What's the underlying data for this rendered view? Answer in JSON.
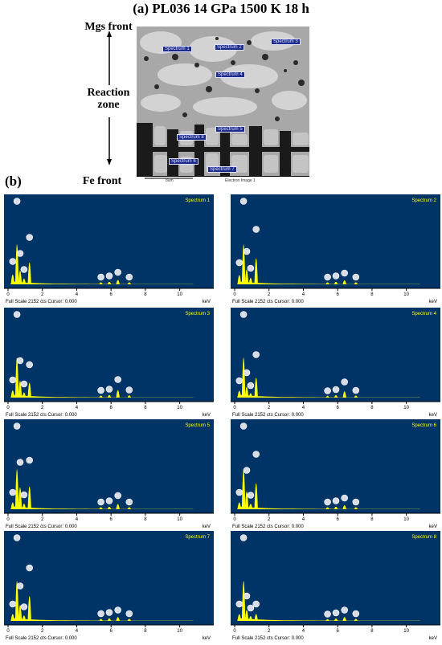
{
  "figure": {
    "title": "(a) PL036 14 GPa 1500 K 18 h",
    "panel_b_label": "(b)",
    "side_labels": {
      "top": "Mgs front",
      "middle_line1": "Reaction",
      "middle_line2": "zone",
      "bottom": "Fe front"
    },
    "sem": {
      "scale_text": "8um",
      "image_label": "Electron Image 1",
      "spectrum_labels": [
        "Spectrum 1",
        "Spectrum 2",
        "Spectrum 3",
        "Spectrum 4",
        "Spectrum 5",
        "Spectrum 6",
        "Spectrum 7",
        "Spectrum 8"
      ]
    }
  },
  "panel_common": {
    "footer": "Full Scale 2152 cts Cursor: 0.000",
    "unit": "keV",
    "bg_color": "#003366",
    "peak_color": "#ffff00",
    "x_ticks": [
      "0",
      "2",
      "4",
      "6",
      "8",
      "10"
    ]
  },
  "chart_data": [
    {
      "type": "area",
      "title": "Spectrum 1",
      "xlabel": "keV",
      "xlim": [
        0,
        11
      ],
      "x": [
        0.27,
        0.52,
        0.7,
        0.93,
        1.25,
        5.41,
        5.9,
        6.4,
        7.06
      ],
      "values": [
        450,
        1950,
        650,
        250,
        1050,
        60,
        90,
        180,
        60
      ]
    },
    {
      "type": "area",
      "title": "Spectrum 2",
      "xlabel": "keV",
      "xlim": [
        0,
        11
      ],
      "x": [
        0.27,
        0.52,
        0.7,
        0.93,
        1.25,
        5.41,
        5.9,
        6.4,
        7.06
      ],
      "values": [
        420,
        1950,
        700,
        280,
        1250,
        60,
        90,
        160,
        60
      ]
    },
    {
      "type": "area",
      "title": "Spectrum 3",
      "xlabel": "keV",
      "xlim": [
        0,
        11
      ],
      "x": [
        0.27,
        0.52,
        0.7,
        0.93,
        1.25,
        5.41,
        5.9,
        6.4,
        7.06
      ],
      "values": [
        320,
        1950,
        800,
        220,
        700,
        60,
        90,
        330,
        70
      ]
    },
    {
      "type": "area",
      "title": "Spectrum 4",
      "xlabel": "keV",
      "xlim": [
        0,
        11
      ],
      "x": [
        0.27,
        0.52,
        0.7,
        0.93,
        1.25,
        5.41,
        5.9,
        6.4,
        7.06
      ],
      "values": [
        300,
        1950,
        500,
        180,
        950,
        50,
        80,
        270,
        60
      ]
    },
    {
      "type": "area",
      "title": "Spectrum 5",
      "xlabel": "keV",
      "xlim": [
        0,
        11
      ],
      "x": [
        0.27,
        0.52,
        0.7,
        0.93,
        1.25,
        5.41,
        5.9,
        6.4,
        7.06
      ],
      "values": [
        300,
        1950,
        1050,
        240,
        1100,
        60,
        90,
        220,
        60
      ]
    },
    {
      "type": "area",
      "title": "Spectrum 6",
      "xlabel": "keV",
      "xlim": [
        0,
        11
      ],
      "x": [
        0.27,
        0.52,
        0.7,
        0.93,
        1.25,
        5.41,
        5.9,
        6.4,
        7.06
      ],
      "values": [
        300,
        1950,
        850,
        230,
        1250,
        60,
        90,
        160,
        60
      ]
    },
    {
      "type": "area",
      "title": "Spectrum 7",
      "xlabel": "keV",
      "xlim": [
        0,
        11
      ],
      "x": [
        0.27,
        0.52,
        0.7,
        0.93,
        1.25,
        5.41,
        5.9,
        6.4,
        7.06
      ],
      "values": [
        300,
        1950,
        750,
        230,
        1200,
        60,
        90,
        150,
        60
      ]
    },
    {
      "type": "area",
      "title": "Spectrum 8",
      "xlabel": "keV",
      "xlim": [
        0,
        11
      ],
      "x": [
        0.27,
        0.52,
        0.7,
        0.93,
        1.25,
        5.41,
        5.9,
        6.4,
        7.06
      ],
      "values": [
        300,
        1950,
        500,
        200,
        300,
        50,
        80,
        150,
        60
      ]
    }
  ]
}
